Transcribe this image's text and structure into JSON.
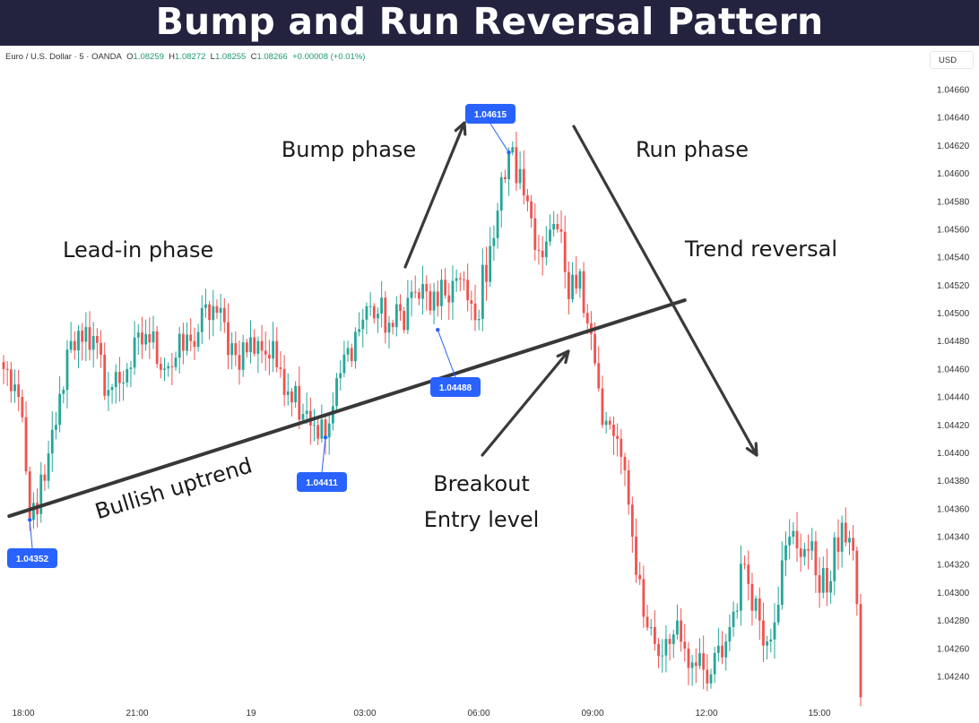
{
  "page_title": "Bump and Run Reversal Pattern",
  "symbol_info": {
    "name": "Euro / U.S. Dollar · 5 · OANDA",
    "ohlc": [
      {
        "label": "O",
        "value": "1.08259"
      },
      {
        "label": "H",
        "value": "1.08272"
      },
      {
        "label": "L",
        "value": "1.08255"
      },
      {
        "label": "C",
        "value": "1.08266"
      }
    ],
    "change": "+0.00008 (+0.01%)"
  },
  "currency": "USD",
  "colors": {
    "up": "#26a69a",
    "down": "#ef5350",
    "trendline": "#383838",
    "arrow": "#3a3a3a",
    "price_label": "#2962ff",
    "banner": "#23223f"
  },
  "chart_data": {
    "type": "candlestick",
    "ylim": [
      1.0423,
      1.0467
    ],
    "yticks": [
      "1.04660",
      "1.04640",
      "1.04620",
      "1.04600",
      "1.04580",
      "1.04560",
      "1.04540",
      "1.04520",
      "1.04500",
      "1.04480",
      "1.04460",
      "1.04440",
      "1.04420",
      "1.04400",
      "1.04380",
      "1.04360",
      "1.04340",
      "1.04320",
      "1.04300",
      "1.04280",
      "1.04260",
      "1.04240"
    ],
    "xticks": [
      "18:00",
      "21:00",
      "19",
      "03:00",
      "06:00",
      "09:00",
      "12:00",
      "15:00"
    ],
    "candle_count": 230,
    "close_path": [
      {
        "i": 0,
        "p": 1.0446
      },
      {
        "i": 4,
        "p": 1.0444
      },
      {
        "i": 7,
        "p": 1.04352
      },
      {
        "i": 11,
        "p": 1.0438
      },
      {
        "i": 14,
        "p": 1.0442
      },
      {
        "i": 18,
        "p": 1.0448
      },
      {
        "i": 22,
        "p": 1.0449
      },
      {
        "i": 28,
        "p": 1.04445
      },
      {
        "i": 33,
        "p": 1.0446
      },
      {
        "i": 38,
        "p": 1.04485
      },
      {
        "i": 44,
        "p": 1.04462
      },
      {
        "i": 50,
        "p": 1.0448
      },
      {
        "i": 56,
        "p": 1.04505
      },
      {
        "i": 62,
        "p": 1.0447
      },
      {
        "i": 68,
        "p": 1.0448
      },
      {
        "i": 74,
        "p": 1.0446
      },
      {
        "i": 81,
        "p": 1.0443
      },
      {
        "i": 86,
        "p": 1.04411
      },
      {
        "i": 92,
        "p": 1.04475
      },
      {
        "i": 98,
        "p": 1.04505
      },
      {
        "i": 104,
        "p": 1.0449
      },
      {
        "i": 110,
        "p": 1.04515
      },
      {
        "i": 116,
        "p": 1.04505
      },
      {
        "i": 121,
        "p": 1.04525
      },
      {
        "i": 126,
        "p": 1.04495
      },
      {
        "i": 130,
        "p": 1.04548
      },
      {
        "i": 135,
        "p": 1.04615
      },
      {
        "i": 140,
        "p": 1.0458
      },
      {
        "i": 144,
        "p": 1.0454
      },
      {
        "i": 148,
        "p": 1.0456
      },
      {
        "i": 151,
        "p": 1.0451
      },
      {
        "i": 154,
        "p": 1.0453
      },
      {
        "i": 157,
        "p": 1.04485
      },
      {
        "i": 160,
        "p": 1.0442
      },
      {
        "i": 164,
        "p": 1.0441
      },
      {
        "i": 168,
        "p": 1.0434
      },
      {
        "i": 172,
        "p": 1.04275
      },
      {
        "i": 176,
        "p": 1.04255
      },
      {
        "i": 180,
        "p": 1.0428
      },
      {
        "i": 184,
        "p": 1.0425
      },
      {
        "i": 188,
        "p": 1.04235
      },
      {
        "i": 193,
        "p": 1.04265
      },
      {
        "i": 198,
        "p": 1.0432
      },
      {
        "i": 204,
        "p": 1.04265
      },
      {
        "i": 210,
        "p": 1.0434
      },
      {
        "i": 215,
        "p": 1.0433
      },
      {
        "i": 220,
        "p": 1.043
      },
      {
        "i": 224,
        "p": 1.0435
      },
      {
        "i": 227,
        "p": 1.0433
      },
      {
        "i": 229,
        "p": 1.04225
      }
    ],
    "trendline": {
      "from": {
        "i": 3,
        "p": 1.04356
      },
      "to": {
        "i": 170,
        "p": 1.04499
      }
    },
    "price_labels": [
      {
        "text": "1.04352",
        "i": 7,
        "p": 1.04352
      },
      {
        "text": "1.04411",
        "i": 86,
        "p": 1.04411
      },
      {
        "text": "1.04488",
        "i": 116,
        "p": 1.04488
      },
      {
        "text": "1.04615",
        "i": 135,
        "p": 1.04615
      }
    ],
    "annotations": [
      {
        "text": "Lead-in phase"
      },
      {
        "text": "Bump phase"
      },
      {
        "text": "Run phase"
      },
      {
        "text": "Trend reversal"
      },
      {
        "text": "Breakout"
      },
      {
        "text": "Entry level"
      },
      {
        "text": "Bullish uptrend"
      }
    ]
  }
}
